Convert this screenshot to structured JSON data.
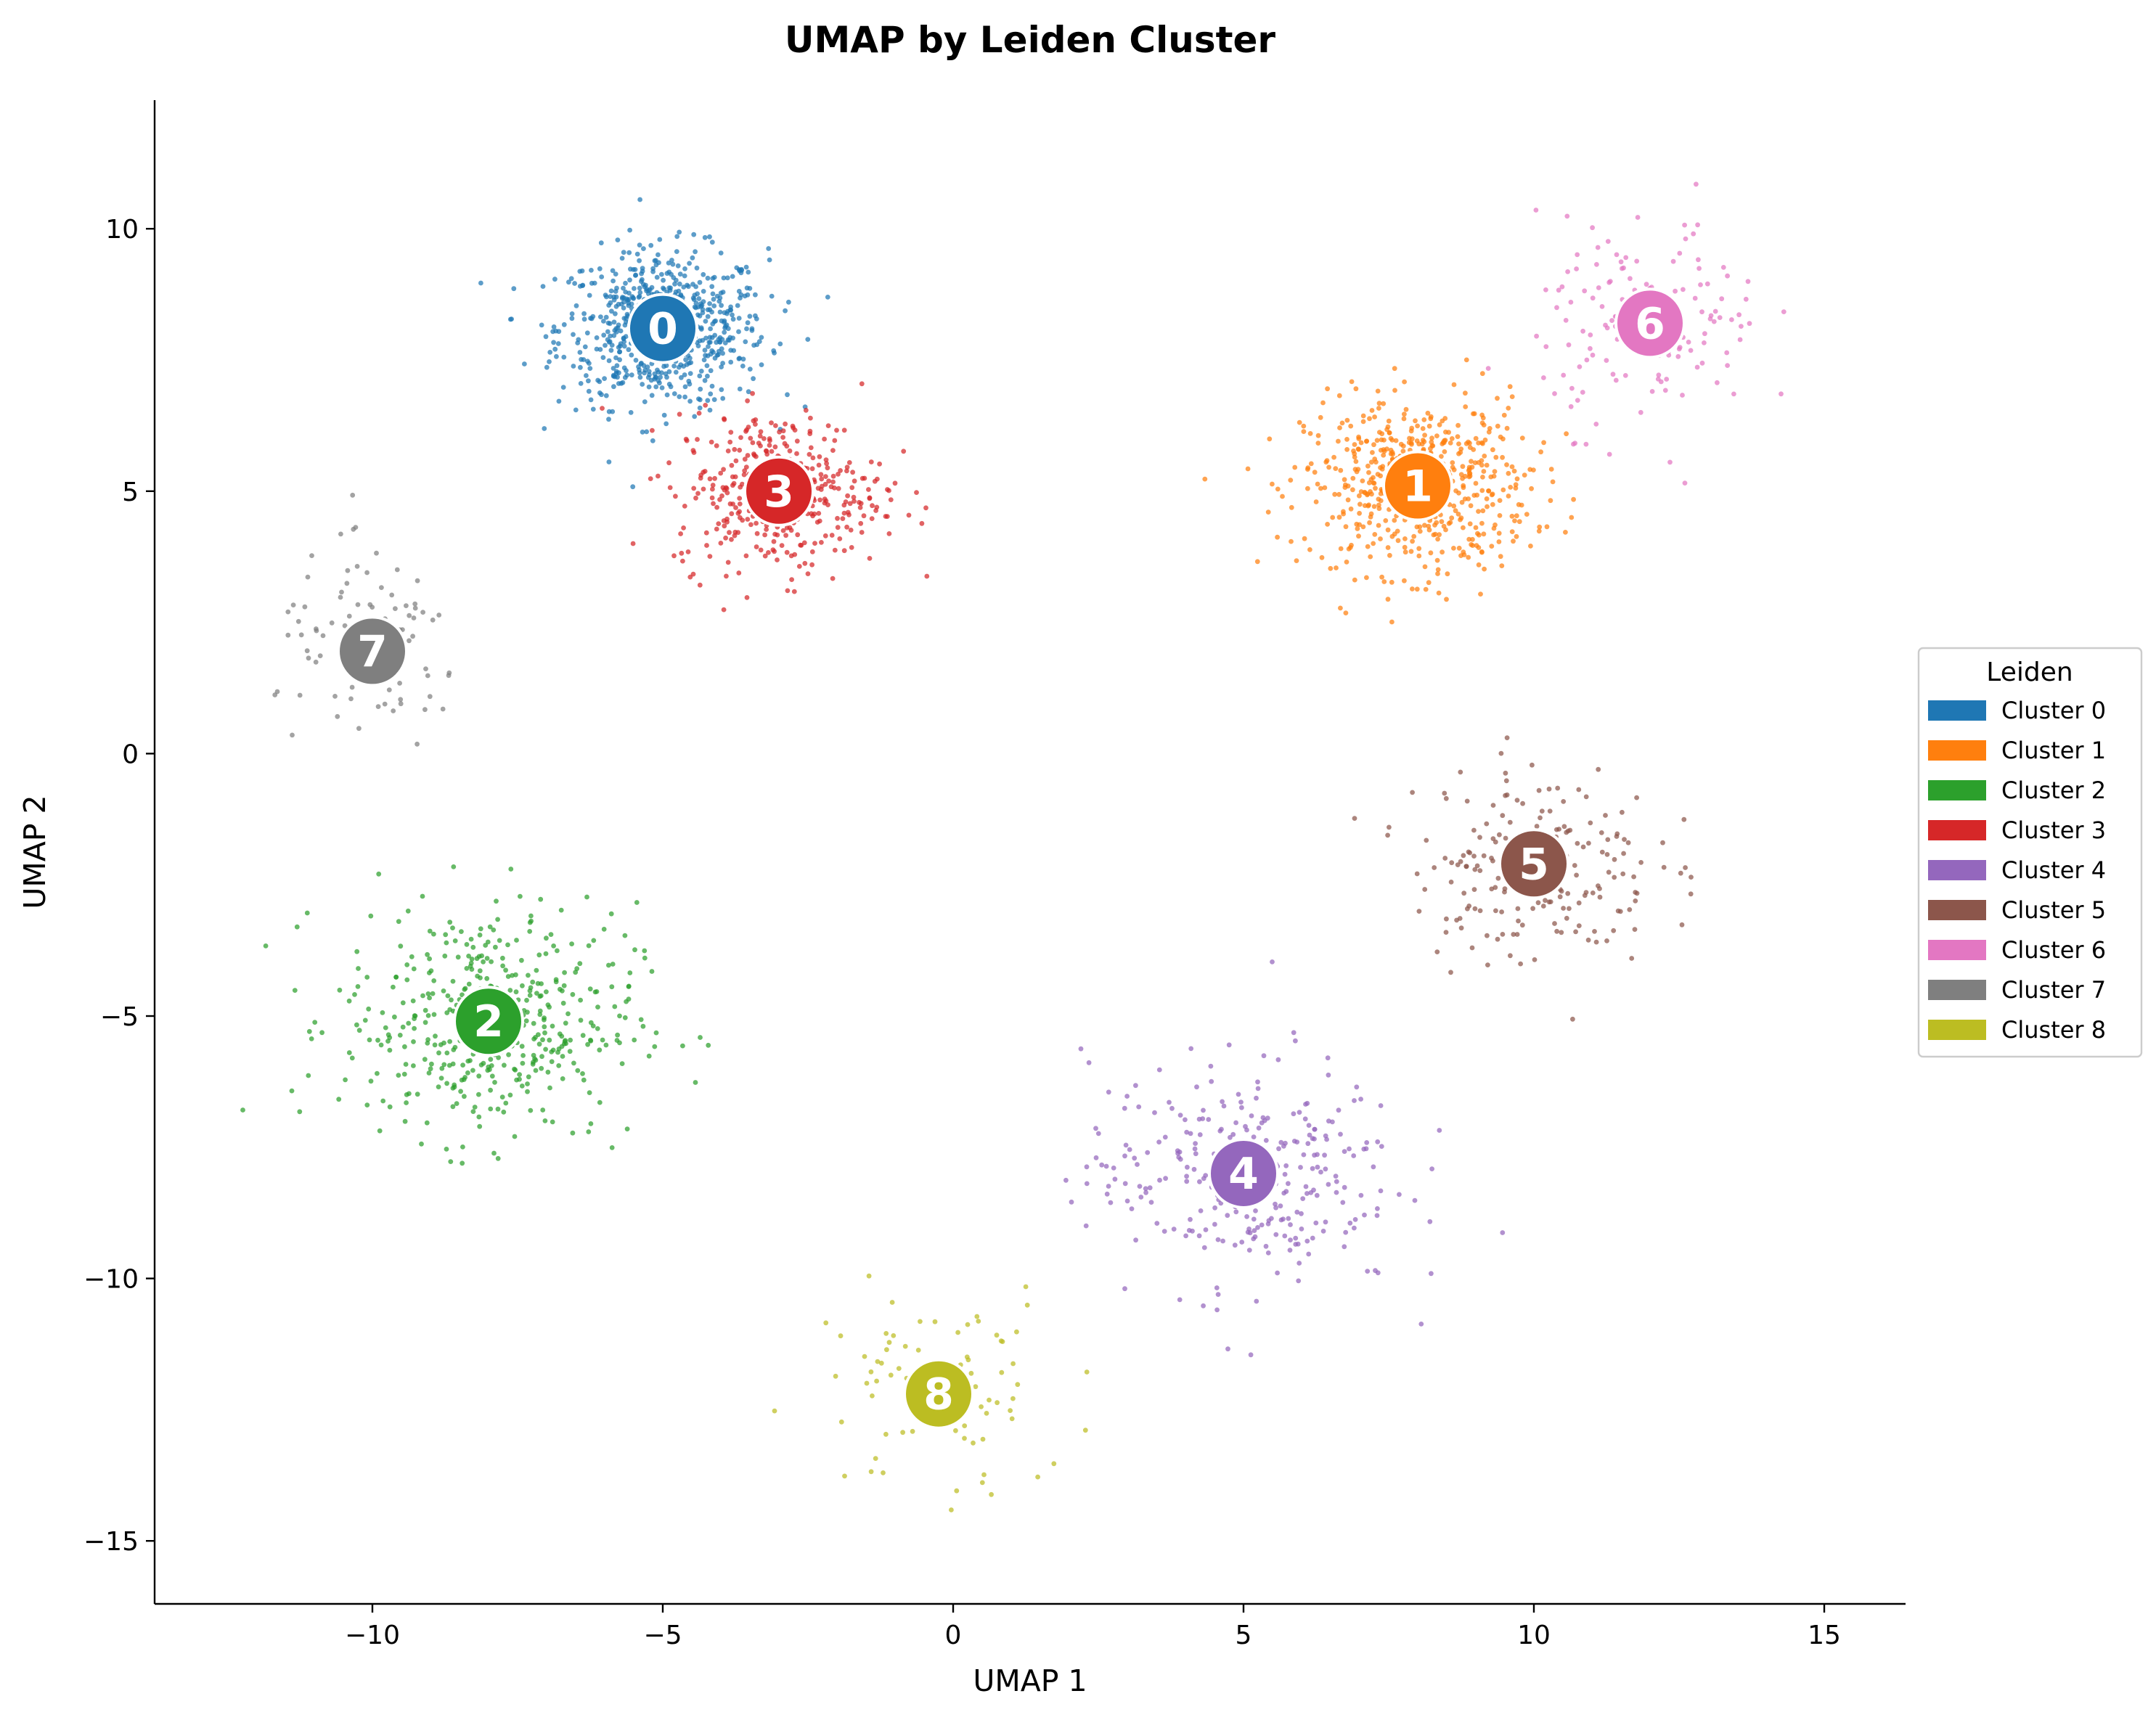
{
  "chart_data": {
    "type": "scatter",
    "title": "UMAP by Leiden Cluster",
    "xlabel": "UMAP 1",
    "ylabel": "UMAP 2",
    "xlim": [
      -13.75,
      16.4
    ],
    "ylim": [
      -16.2,
      12.45
    ],
    "xticks": [
      -10,
      -5,
      0,
      5,
      10,
      15
    ],
    "yticks": [
      -15,
      -10,
      -5,
      0,
      5,
      10
    ],
    "xtick_labels": [
      "−10",
      "−5",
      "0",
      "5",
      "10",
      "15"
    ],
    "ytick_labels": [
      "−15",
      "−10",
      "−5",
      "0",
      "5",
      "10"
    ],
    "grid": false,
    "legend": {
      "title": "Leiden",
      "placement": "center-right-outside",
      "entries": [
        "Cluster 0",
        "Cluster 1",
        "Cluster 2",
        "Cluster 3",
        "Cluster 4",
        "Cluster 5",
        "Cluster 6",
        "Cluster 7",
        "Cluster 8"
      ]
    },
    "series": [
      {
        "name": "Cluster 0",
        "label": "0",
        "color": "#1f77b4",
        "centroid": [
          -5.0,
          8.1
        ],
        "spread": [
          1.2,
          1.0
        ],
        "n_points": 700
      },
      {
        "name": "Cluster 1",
        "label": "1",
        "color": "#ff7f0e",
        "centroid": [
          8.0,
          5.1
        ],
        "spread": [
          1.3,
          1.1
        ],
        "n_points": 600
      },
      {
        "name": "Cluster 2",
        "label": "2",
        "color": "#2ca02c",
        "centroid": [
          -8.0,
          -5.1
        ],
        "spread": [
          1.7,
          1.5
        ],
        "n_points": 450
      },
      {
        "name": "Cluster 3",
        "label": "3",
        "color": "#d62728",
        "centroid": [
          -3.0,
          5.0
        ],
        "spread": [
          1.2,
          1.0
        ],
        "n_points": 400
      },
      {
        "name": "Cluster 4",
        "label": "4",
        "color": "#9467bd",
        "centroid": [
          5.0,
          -8.0
        ],
        "spread": [
          1.8,
          1.5
        ],
        "n_points": 300
      },
      {
        "name": "Cluster 5",
        "label": "5",
        "color": "#8c564b",
        "centroid": [
          10.0,
          -2.1
        ],
        "spread": [
          1.4,
          1.3
        ],
        "n_points": 200
      },
      {
        "name": "Cluster 6",
        "label": "6",
        "color": "#e377c2",
        "centroid": [
          12.0,
          8.2
        ],
        "spread": [
          1.3,
          1.3
        ],
        "n_points": 150
      },
      {
        "name": "Cluster 7",
        "label": "7",
        "color": "#7f7f7f",
        "centroid": [
          -10.0,
          1.95
        ],
        "spread": [
          1.1,
          1.2
        ],
        "n_points": 100
      },
      {
        "name": "Cluster 8",
        "label": "8",
        "color": "#bcbd22",
        "centroid": [
          -0.25,
          -12.2
        ],
        "spread": [
          1.5,
          1.4
        ],
        "n_points": 80
      }
    ]
  }
}
